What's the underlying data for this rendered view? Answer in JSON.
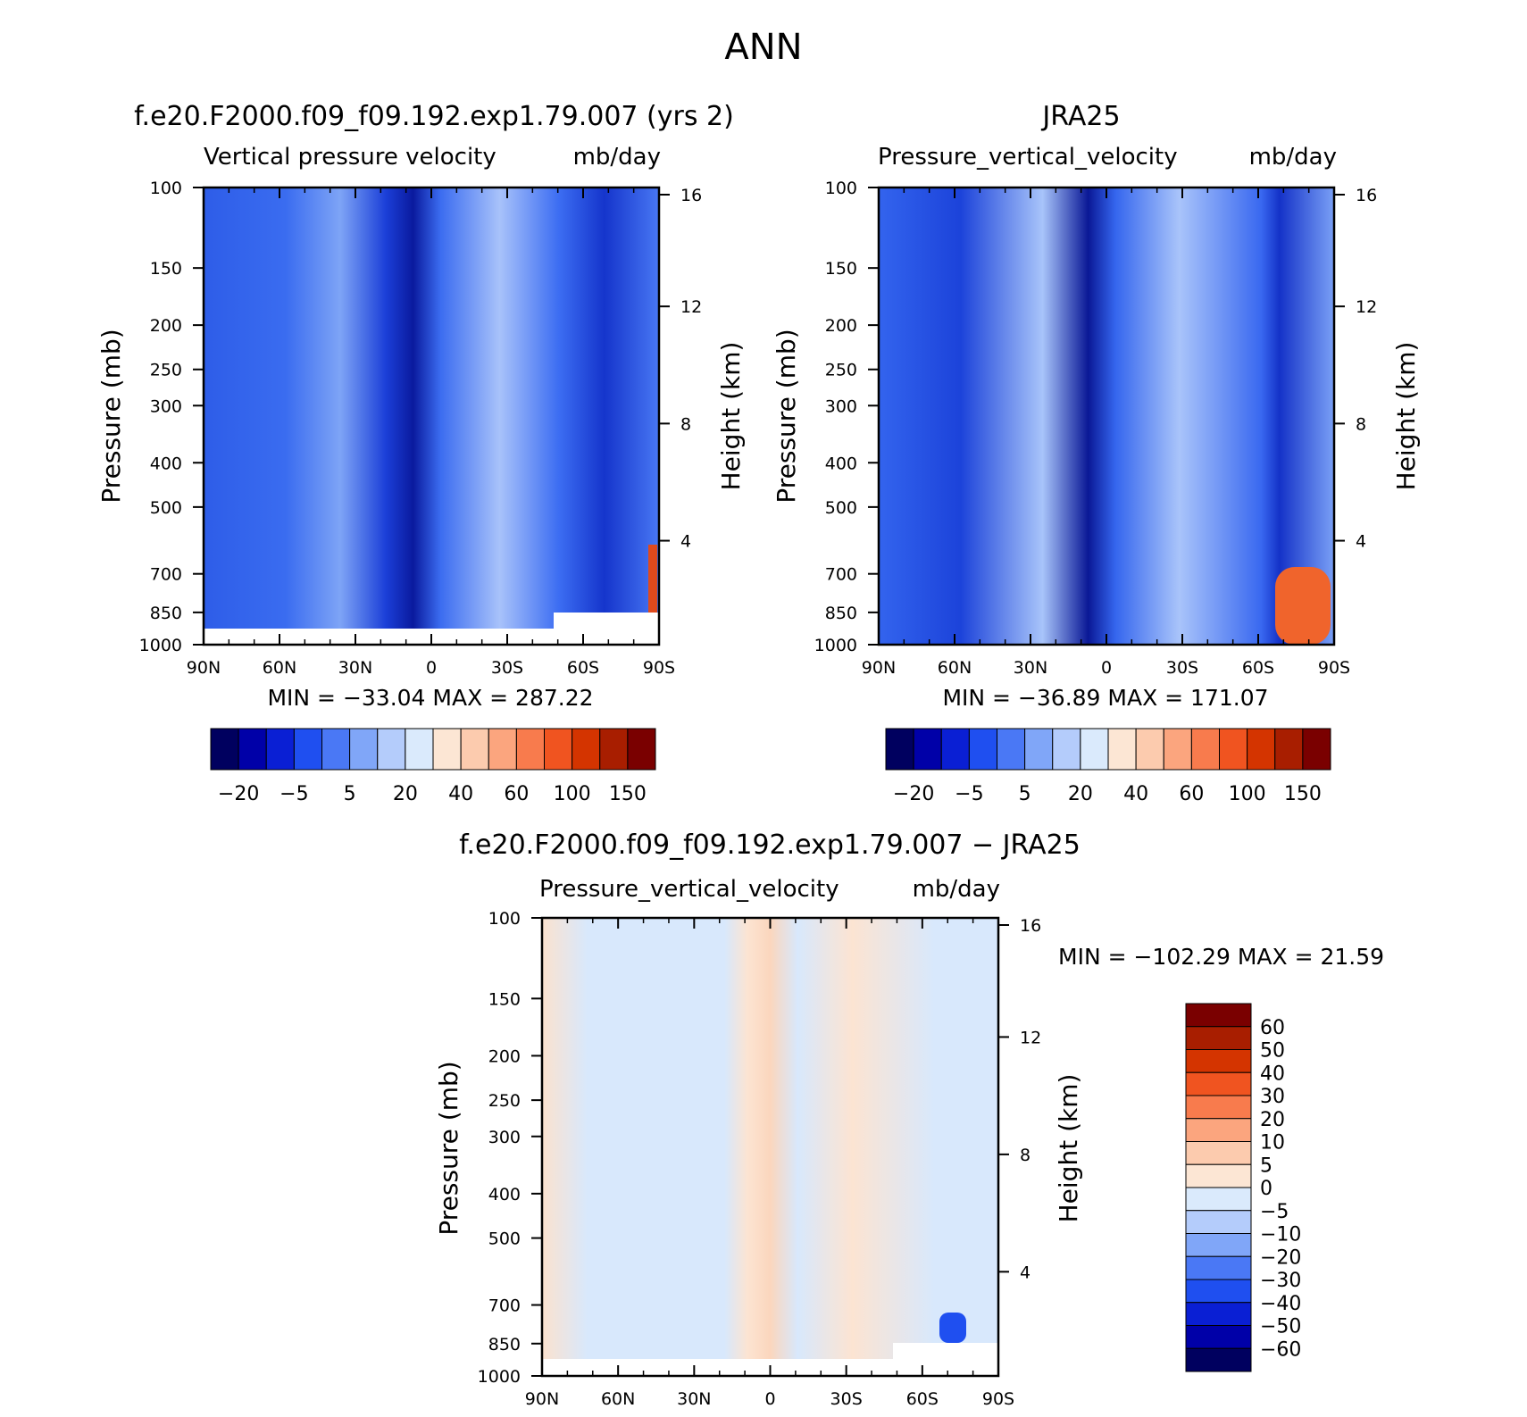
{
  "figure_title": "ANN",
  "chart_data": [
    {
      "type": "heatmap",
      "id": "model",
      "title": "f.e20.F2000.f09_f09.192.exp1.79.007 (yrs 2)",
      "subtitle_left": "Vertical pressure velocity",
      "subtitle_right": "mb/day",
      "ylabel": "Pressure (mb)",
      "ylabel_right": "Height (km)",
      "x_ticks": [
        "90N",
        "60N",
        "30N",
        "0",
        "30S",
        "60S",
        "90S"
      ],
      "y_ticks": [
        "100",
        "150",
        "200",
        "250",
        "300",
        "400",
        "500",
        "700",
        "850",
        "1000"
      ],
      "y_ticks_right": [
        "16",
        "12",
        "8",
        "4"
      ],
      "stats": "MIN = −33.04   MAX = 287.22",
      "colorbar_labels": [
        "−20",
        "−5",
        "5",
        "20",
        "40",
        "60",
        "100",
        "150"
      ],
      "colors": [
        "#00005f",
        "#0000a8",
        "#0a1fd4",
        "#1f4ff0",
        "#4a78f5",
        "#80a6f8",
        "#b4ccfb",
        "#daeafc",
        "#fce6d4",
        "#fccbae",
        "#fba57e",
        "#f87b4d",
        "#f05420",
        "#d43400",
        "#a81e00",
        "#7a0000"
      ]
    },
    {
      "type": "heatmap",
      "id": "obs",
      "title": "JRA25",
      "subtitle_left": "Pressure_vertical_velocity",
      "subtitle_right": "mb/day",
      "ylabel": "Pressure (mb)",
      "ylabel_right": "Height (km)",
      "x_ticks": [
        "90N",
        "60N",
        "30N",
        "0",
        "30S",
        "60S",
        "90S"
      ],
      "y_ticks": [
        "100",
        "150",
        "200",
        "250",
        "300",
        "400",
        "500",
        "700",
        "850",
        "1000"
      ],
      "y_ticks_right": [
        "16",
        "12",
        "8",
        "4"
      ],
      "stats": "MIN = −36.89   MAX = 171.07",
      "colorbar_labels": [
        "−20",
        "−5",
        "5",
        "20",
        "40",
        "60",
        "100",
        "150"
      ]
    },
    {
      "type": "heatmap",
      "id": "diff",
      "title": "f.e20.F2000.f09_f09.192.exp1.79.007 − JRA25",
      "subtitle_left": "Pressure_vertical_velocity",
      "subtitle_right": "mb/day",
      "ylabel": "Pressure (mb)",
      "ylabel_right": "Height (km)",
      "x_ticks": [
        "90N",
        "60N",
        "30N",
        "0",
        "30S",
        "60S",
        "90S"
      ],
      "y_ticks": [
        "100",
        "150",
        "200",
        "250",
        "300",
        "400",
        "500",
        "700",
        "850",
        "1000"
      ],
      "y_ticks_right": [
        "16",
        "12",
        "8",
        "4"
      ],
      "stats": "MIN = −102.29   MAX =   21.59",
      "colorbar_labels": [
        "60",
        "50",
        "40",
        "30",
        "20",
        "10",
        "5",
        "0",
        "−5",
        "−10",
        "−20",
        "−30",
        "−40",
        "−50",
        "−60"
      ],
      "colors": [
        "#7a0000",
        "#a81e00",
        "#d43400",
        "#f05420",
        "#f87b4d",
        "#fba57e",
        "#fccbae",
        "#fce6d4",
        "#daeafc",
        "#b4ccfb",
        "#80a6f8",
        "#4a78f5",
        "#1f4ff0",
        "#0a1fd4",
        "#0000a8",
        "#00005f"
      ]
    }
  ]
}
